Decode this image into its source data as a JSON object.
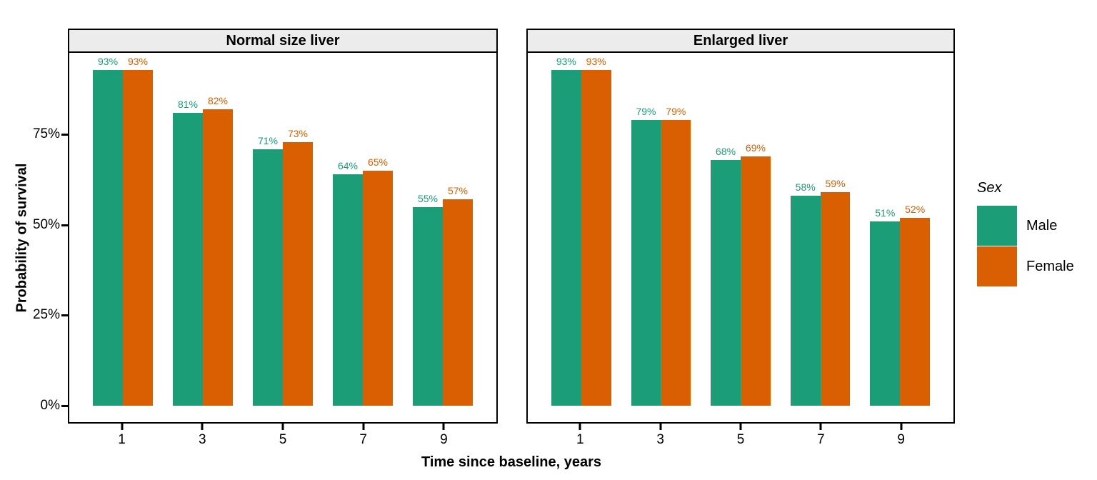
{
  "figure": {
    "y_axis_title": "Probability of survival",
    "x_axis_title": "Time since baseline, years"
  },
  "legend": {
    "title": "Sex",
    "items": [
      {
        "label": "Male",
        "color": "#1B9E77"
      },
      {
        "label": "Female",
        "color": "#D95F02"
      }
    ]
  },
  "chart_data": {
    "type": "bar",
    "categories": [
      "1",
      "3",
      "5",
      "7",
      "9"
    ],
    "facets": [
      {
        "title": "Normal size liver",
        "series": [
          {
            "name": "Male",
            "values": [
              93,
              81,
              71,
              64,
              55
            ]
          },
          {
            "name": "Female",
            "values": [
              93,
              82,
              73,
              65,
              57
            ]
          }
        ]
      },
      {
        "title": "Enlarged liver",
        "series": [
          {
            "name": "Male",
            "values": [
              93,
              79,
              68,
              58,
              51
            ]
          },
          {
            "name": "Female",
            "values": [
              93,
              79,
              69,
              59,
              52
            ]
          }
        ]
      }
    ],
    "series_colors": {
      "Male": "#1B9E77",
      "Female": "#D95F02"
    },
    "value_suffix": "%",
    "value_labels_shown": true,
    "xlabel": "Time since baseline, years",
    "ylabel": "Probability of survival",
    "y_ticks": [
      {
        "value": 0,
        "label": "0%"
      },
      {
        "value": 25,
        "label": "25%"
      },
      {
        "value": 50,
        "label": "50%"
      },
      {
        "value": 75,
        "label": "75%"
      }
    ],
    "ylim": [
      -4.65,
      97.65
    ],
    "grid": false,
    "legend_position": "right",
    "strip_background": "#ECECEC",
    "panel_border_color": "#000000"
  }
}
